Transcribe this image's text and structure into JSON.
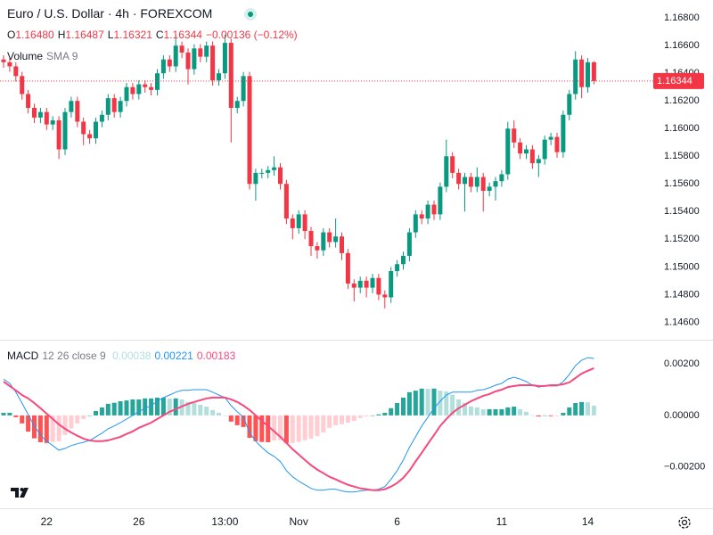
{
  "chart_data": [
    {
      "type": "candlestick",
      "title": "Euro / U.S. Dollar · 4h · FOREXCOM",
      "legend": [
        {
          "key": "O",
          "value": "1.16480"
        },
        {
          "key": "H",
          "value": "1.16487"
        },
        {
          "key": "L",
          "value": "1.16321"
        },
        {
          "key": "C",
          "value": "1.16344"
        }
      ],
      "change": "−0.00136 (−0.12%)",
      "indicator": {
        "name": "Volume",
        "params": "SMA 9"
      },
      "up_color": "#089981",
      "down_color": "#f23645",
      "categories": [
        null,
        null,
        null,
        null,
        null,
        null,
        null,
        "22",
        null,
        null,
        null,
        null,
        null,
        null,
        null,
        null,
        null,
        null,
        null,
        null,
        null,
        null,
        "26",
        null,
        null,
        null,
        null,
        null,
        null,
        null,
        null,
        null,
        null,
        null,
        null,
        null,
        "13:00",
        null,
        null,
        null,
        null,
        null,
        null,
        null,
        null,
        null,
        null,
        null,
        "Nov",
        null,
        null,
        null,
        null,
        null,
        null,
        null,
        null,
        null,
        null,
        null,
        null,
        null,
        null,
        null,
        "6",
        null,
        null,
        null,
        null,
        null,
        null,
        null,
        null,
        null,
        null,
        null,
        null,
        null,
        null,
        null,
        null,
        "11",
        null,
        null,
        null,
        null,
        null,
        null,
        null,
        null,
        null,
        null,
        null,
        null,
        null,
        "14",
        null
      ],
      "open": [
        1.165,
        1.1648,
        1.1645,
        1.1638,
        1.1625,
        1.1615,
        1.1608,
        1.1612,
        1.1603,
        1.1606,
        1.1585,
        1.1612,
        1.162,
        1.1605,
        1.1596,
        1.1593,
        1.1605,
        1.161,
        1.1622,
        1.1612,
        1.162,
        1.163,
        1.1625,
        1.1632,
        1.163,
        1.1628,
        1.164,
        1.165,
        1.1645,
        1.166,
        1.1655,
        1.1643,
        1.1658,
        1.1652,
        1.166,
        1.1635,
        1.164,
        1.1662,
        1.1615,
        1.162,
        1.1638,
        1.156,
        1.1568,
        1.1568,
        1.157,
        1.1572,
        1.156,
        1.1535,
        1.1528,
        1.1538,
        1.1526,
        1.1515,
        1.1512,
        1.1525,
        1.1518,
        1.1522,
        1.151,
        1.1488,
        1.1485,
        1.149,
        1.1485,
        1.1492,
        1.148,
        1.1478,
        1.1497,
        1.1502,
        1.1508,
        1.1525,
        1.1538,
        1.1535,
        1.1545,
        1.1538,
        1.1558,
        1.158,
        1.1568,
        1.156,
        1.1565,
        1.1558,
        1.1565,
        1.1555,
        1.1558,
        1.1562,
        1.1567,
        1.16,
        1.159,
        1.1582,
        1.1585,
        1.1575,
        1.1578,
        1.1592,
        1.1594,
        1.1583,
        1.161,
        1.1625,
        1.165,
        1.163,
        1.1648
      ],
      "high": [
        1.1653,
        1.1651,
        1.1648,
        1.1641,
        1.1628,
        1.1618,
        1.1615,
        1.1615,
        1.1609,
        1.1609,
        1.1615,
        1.1623,
        1.1623,
        1.1608,
        1.1599,
        1.1608,
        1.1613,
        1.1625,
        1.1625,
        1.1623,
        1.1633,
        1.1633,
        1.1635,
        1.1635,
        1.1633,
        1.1643,
        1.1653,
        1.1653,
        1.1668,
        1.1663,
        1.1658,
        1.1661,
        1.1661,
        1.1663,
        1.1663,
        1.1643,
        1.1668,
        1.1665,
        1.1623,
        1.1641,
        1.1641,
        1.1571,
        1.1571,
        1.1573,
        1.158,
        1.1575,
        1.1563,
        1.1538,
        1.1541,
        1.1541,
        1.1529,
        1.1518,
        1.1528,
        1.1528,
        1.1535,
        1.1525,
        1.1513,
        1.1491,
        1.1493,
        1.1493,
        1.1495,
        1.1495,
        1.1483,
        1.15,
        1.1505,
        1.1511,
        1.1528,
        1.1541,
        1.1541,
        1.1548,
        1.1548,
        1.1561,
        1.1592,
        1.1583,
        1.1571,
        1.1568,
        1.1568,
        1.1572,
        1.1568,
        1.1561,
        1.1565,
        1.157,
        1.1605,
        1.1606,
        1.1593,
        1.1588,
        1.1588,
        1.1581,
        1.1595,
        1.1597,
        1.1597,
        1.1613,
        1.1628,
        1.1656,
        1.1653,
        1.1651,
        1.16487
      ],
      "low": [
        1.1644,
        1.1641,
        1.1634,
        1.1621,
        1.1611,
        1.1604,
        1.1604,
        1.1599,
        1.1599,
        1.1578,
        1.1581,
        1.1608,
        1.1601,
        1.1588,
        1.1589,
        1.1589,
        1.1601,
        1.1606,
        1.1608,
        1.1608,
        1.1616,
        1.1621,
        1.1621,
        1.1626,
        1.1624,
        1.1624,
        1.1636,
        1.1641,
        1.1641,
        1.1651,
        1.1632,
        1.1639,
        1.1648,
        1.1648,
        1.1631,
        1.1631,
        1.1636,
        1.159,
        1.1611,
        1.1616,
        1.1556,
        1.1548,
        1.1564,
        1.1564,
        1.1566,
        1.1556,
        1.1531,
        1.152,
        1.1524,
        1.152,
        1.1508,
        1.1506,
        1.1508,
        1.1514,
        1.1514,
        1.1505,
        1.1484,
        1.1475,
        1.1481,
        1.1478,
        1.1481,
        1.1476,
        1.147,
        1.1474,
        1.1493,
        1.1498,
        1.1504,
        1.1521,
        1.1531,
        1.1531,
        1.1534,
        1.1534,
        1.1554,
        1.1564,
        1.1556,
        1.154,
        1.1554,
        1.1554,
        1.154,
        1.1551,
        1.1548,
        1.1558,
        1.1563,
        1.1586,
        1.1578,
        1.1578,
        1.1571,
        1.1565,
        1.1574,
        1.1588,
        1.1579,
        1.1579,
        1.1606,
        1.1621,
        1.1622,
        1.1626,
        1.16321
      ],
      "close": [
        1.1648,
        1.1645,
        1.1638,
        1.1625,
        1.1615,
        1.1608,
        1.1612,
        1.1603,
        1.1606,
        1.1585,
        1.1612,
        1.162,
        1.1605,
        1.1596,
        1.1593,
        1.1605,
        1.161,
        1.1622,
        1.1612,
        1.162,
        1.163,
        1.1625,
        1.1632,
        1.163,
        1.1628,
        1.164,
        1.165,
        1.1645,
        1.166,
        1.1655,
        1.1643,
        1.1658,
        1.1652,
        1.166,
        1.1635,
        1.164,
        1.1662,
        1.1615,
        1.162,
        1.1638,
        1.156,
        1.1568,
        1.1568,
        1.157,
        1.1572,
        1.156,
        1.1535,
        1.1528,
        1.1538,
        1.1526,
        1.1515,
        1.1512,
        1.1525,
        1.1518,
        1.1522,
        1.151,
        1.1488,
        1.1485,
        1.149,
        1.1485,
        1.1492,
        1.148,
        1.1478,
        1.1497,
        1.1502,
        1.1508,
        1.1525,
        1.1538,
        1.1535,
        1.1545,
        1.1538,
        1.1558,
        1.158,
        1.1568,
        1.156,
        1.1565,
        1.1558,
        1.1565,
        1.1555,
        1.1558,
        1.1562,
        1.1567,
        1.16,
        1.159,
        1.1582,
        1.1585,
        1.1575,
        1.1578,
        1.1592,
        1.1594,
        1.1583,
        1.161,
        1.1625,
        1.165,
        1.163,
        1.1648,
        1.16344
      ],
      "ylim": [
        1.1448,
        1.1693
      ],
      "yticks": [
        {
          "value": 1.146,
          "label": "1.14600"
        },
        {
          "value": 1.148,
          "label": "1.14800"
        },
        {
          "value": 1.15,
          "label": "1.15000"
        },
        {
          "value": 1.152,
          "label": "1.15200"
        },
        {
          "value": 1.154,
          "label": "1.15400"
        },
        {
          "value": 1.156,
          "label": "1.15600"
        },
        {
          "value": 1.158,
          "label": "1.15800"
        },
        {
          "value": 1.16,
          "label": "1.16000"
        },
        {
          "value": 1.162,
          "label": "1.16200"
        },
        {
          "value": 1.164,
          "label": "1.16400"
        },
        {
          "value": 1.166,
          "label": "1.16600"
        },
        {
          "value": 1.168,
          "label": "1.16800"
        }
      ],
      "grid": false
    },
    {
      "type": "macd",
      "title": "MACD",
      "params": "12 26 close 9",
      "series": [
        {
          "colors": [
            "#26a69a",
            "#b2dfdb",
            "#ffcdd2",
            "#ff5252"
          ],
          "values": [
            0.0001,
            0.0001,
            -7e-05,
            -0.00031,
            -0.00063,
            -0.00089,
            -0.00104,
            -0.00107,
            -0.00103,
            -0.001,
            -0.00076,
            -0.00051,
            -0.00031,
            -0.00014,
            0,
            0.00017,
            0.00031,
            0.00045,
            0.00049,
            0.00055,
            0.00058,
            0.00062,
            0.00062,
            0.00066,
            0.00066,
            0.00069,
            0.00069,
            0.00065,
            0.00066,
            0.00062,
            0.00052,
            0.00048,
            0.00041,
            0.00034,
            0.00021,
            0.0001,
            0,
            -0.00024,
            -0.00038,
            -0.00045,
            -0.00087,
            -0.001,
            -0.00103,
            -0.00104,
            -0.00097,
            -0.00096,
            -0.00107,
            -0.00107,
            -0.00103,
            -0.00096,
            -0.0009,
            -0.0008,
            -0.00066,
            -0.00048,
            -0.00038,
            -0.00034,
            -0.00028,
            -0.00021,
            -0.0001,
            -4e-05,
            0,
            4e-05,
            0.0001,
            0.00028,
            0.00048,
            0.00069,
            0.0009,
            0.00096,
            0.00104,
            0.00103,
            0.00104,
            0.00096,
            0.00093,
            0.0008,
            0.00062,
            0.00049,
            0.00035,
            0.00031,
            0.00024,
            0.00024,
            0.00024,
            0.00024,
            0.00031,
            0.00034,
            0.00024,
            0.00014,
            0,
            -4e-05,
            0,
            -3e-05,
            -3e-05,
            0.0001,
            0.00031,
            0.00048,
            0.00052,
            0.00051,
            0.00038
          ]
        },
        {
          "color": "#2196f3",
          "values": [
            0.00141,
            0.00124,
            0.0009,
            0.00048,
            3e-05,
            -0.00041,
            -0.00076,
            -0.001,
            -0.00117,
            -0.00135,
            -0.00128,
            -0.00117,
            -0.0011,
            -0.00104,
            -0.00097,
            -0.00083,
            -0.00069,
            -0.00052,
            -0.00041,
            -0.00028,
            -0.00014,
            0,
            0.00014,
            0.00028,
            0.00038,
            0.00055,
            0.00069,
            0.00079,
            0.0009,
            0.00097,
            0.00097,
            0.001,
            0.001,
            0.001,
            0.0009,
            0.00079,
            0.00069,
            0.00038,
            0.00014,
            -7e-05,
            -0.00066,
            -0.001,
            -0.00124,
            -0.00145,
            -0.00159,
            -0.00179,
            -0.00214,
            -0.00238,
            -0.00255,
            -0.00269,
            -0.00283,
            -0.0029,
            -0.0029,
            -0.00286,
            -0.00286,
            -0.00293,
            -0.00297,
            -0.00297,
            -0.00293,
            -0.0029,
            -0.0029,
            -0.00286,
            -0.00276,
            -0.00248,
            -0.00214,
            -0.00173,
            -0.00124,
            -0.00083,
            -0.00041,
            -7e-05,
            0.00028,
            0.00055,
            0.00079,
            0.0009,
            0.0009,
            0.0009,
            0.0009,
            0.00097,
            0.001,
            0.00107,
            0.00117,
            0.00124,
            0.00141,
            0.00148,
            0.00141,
            0.00131,
            0.00117,
            0.0011,
            0.00114,
            0.00114,
            0.00114,
            0.00131,
            0.00159,
            0.00193,
            0.00214,
            0.00224,
            0.00221
          ]
        },
        {
          "color": "#f7497d",
          "values": [
            0.00131,
            0.00114,
            0.00097,
            0.00079,
            0.00066,
            0.00048,
            0.00028,
            7e-05,
            -0.00014,
            -0.00035,
            -0.00052,
            -0.00066,
            -0.00079,
            -0.0009,
            -0.00097,
            -0.001,
            -0.001,
            -0.00097,
            -0.0009,
            -0.00083,
            -0.00072,
            -0.00062,
            -0.00048,
            -0.00038,
            -0.00028,
            -0.00014,
            0,
            0.00014,
            0.00024,
            0.00035,
            0.00045,
            0.00052,
            0.00059,
            0.00066,
            0.00069,
            0.00069,
            0.00069,
            0.00062,
            0.00052,
            0.00038,
            0.00021,
            0,
            -0.00021,
            -0.00041,
            -0.00062,
            -0.00083,
            -0.00107,
            -0.00131,
            -0.00152,
            -0.00173,
            -0.00193,
            -0.0021,
            -0.00224,
            -0.00238,
            -0.00248,
            -0.00259,
            -0.00269,
            -0.00276,
            -0.00283,
            -0.00286,
            -0.0029,
            -0.0029,
            -0.00286,
            -0.00276,
            -0.00262,
            -0.00242,
            -0.00214,
            -0.00179,
            -0.00145,
            -0.0011,
            -0.00076,
            -0.00041,
            -0.00014,
            0.0001,
            0.00028,
            0.00041,
            0.00055,
            0.00066,
            0.00076,
            0.00083,
            0.00093,
            0.001,
            0.0011,
            0.00114,
            0.00117,
            0.00117,
            0.00117,
            0.00114,
            0.00114,
            0.00117,
            0.00117,
            0.00121,
            0.00128,
            0.00145,
            0.00162,
            0.00173,
            0.00183
          ]
        }
      ],
      "ylim": [
        -0.0036,
        0.0029
      ],
      "yticks": [
        {
          "value": 0.002,
          "label": "0.00200"
        },
        {
          "value": 0,
          "label": "0.00000"
        },
        {
          "value": -0.002,
          "label": "−0.00200"
        }
      ]
    }
  ]
}
